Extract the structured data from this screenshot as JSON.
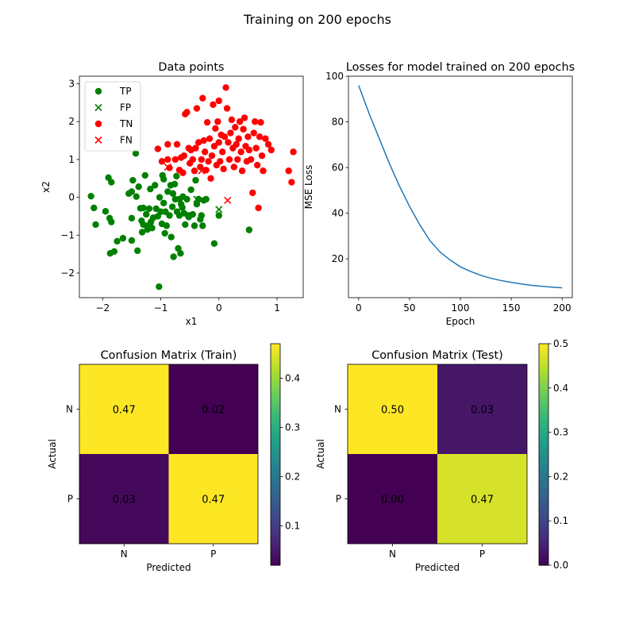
{
  "figure": {
    "suptitle": "Training on 200 epochs"
  },
  "chart_data": [
    {
      "type": "scatter",
      "title": "Data points",
      "xlabel": "x1",
      "ylabel": "x2",
      "xlim": [
        -2.4,
        1.45
      ],
      "ylim": [
        -2.65,
        3.2
      ],
      "xticks": [
        -2,
        -1,
        0,
        1
      ],
      "yticks": [
        -2,
        -1,
        0,
        1,
        2,
        3
      ],
      "legend_position": "upper-left",
      "series": [
        {
          "name": "TP",
          "marker": "circle",
          "color": "#008000",
          "points": [
            [
              -2.2,
              0.03
            ],
            [
              -2.15,
              -0.28
            ],
            [
              -2.12,
              -0.72
            ],
            [
              -1.95,
              -0.37
            ],
            [
              -1.9,
              0.52
            ],
            [
              -1.88,
              -0.55
            ],
            [
              -1.87,
              -1.48
            ],
            [
              -1.85,
              0.4
            ],
            [
              -1.85,
              -0.65
            ],
            [
              -1.8,
              -1.43
            ],
            [
              -1.75,
              -1.16
            ],
            [
              -1.65,
              -1.08
            ],
            [
              -1.55,
              0.1
            ],
            [
              -1.5,
              0.15
            ],
            [
              -1.5,
              -0.55
            ],
            [
              -1.5,
              -1.14
            ],
            [
              -1.48,
              0.45
            ],
            [
              -1.43,
              1.16
            ],
            [
              -1.42,
              0.02
            ],
            [
              -1.4,
              -1.41
            ],
            [
              -1.38,
              0.28
            ],
            [
              -1.35,
              -0.29
            ],
            [
              -1.33,
              -0.62
            ],
            [
              -1.32,
              -0.92
            ],
            [
              -1.3,
              -0.28
            ],
            [
              -1.3,
              -0.72
            ],
            [
              -1.27,
              0.58
            ],
            [
              -1.25,
              -0.45
            ],
            [
              -1.23,
              -0.85
            ],
            [
              -1.22,
              -0.75
            ],
            [
              -1.2,
              -0.3
            ],
            [
              -1.18,
              0.22
            ],
            [
              -1.17,
              -0.65
            ],
            [
              -1.15,
              -0.81
            ],
            [
              -1.13,
              -0.54
            ],
            [
              -1.1,
              0.32
            ],
            [
              -1.08,
              -0.3
            ],
            [
              -1.05,
              -0.5
            ],
            [
              -1.03,
              -2.36
            ],
            [
              -1.02,
              0.0
            ],
            [
              -1.0,
              -0.38
            ],
            [
              -0.98,
              -0.7
            ],
            [
              -0.97,
              0.58
            ],
            [
              -0.95,
              0.48
            ],
            [
              -0.95,
              -0.15
            ],
            [
              -0.93,
              -0.95
            ],
            [
              -0.92,
              -0.38
            ],
            [
              -0.9,
              -0.75
            ],
            [
              -0.88,
              0.15
            ],
            [
              -0.85,
              -0.48
            ],
            [
              -0.83,
              0.32
            ],
            [
              -0.82,
              -1.05
            ],
            [
              -0.8,
              -0.25
            ],
            [
              -0.79,
              0.1
            ],
            [
              -0.78,
              -1.57
            ],
            [
              -0.76,
              0.35
            ],
            [
              -0.75,
              -0.05
            ],
            [
              -0.73,
              0.56
            ],
            [
              -0.72,
              -0.38
            ],
            [
              -0.7,
              -1.35
            ],
            [
              -0.68,
              -0.05
            ],
            [
              -0.68,
              -0.48
            ],
            [
              -0.66,
              -1.48
            ],
            [
              -0.65,
              -0.18
            ],
            [
              -0.63,
              -0.27
            ],
            [
              -0.62,
              0.02
            ],
            [
              -0.6,
              -0.42
            ],
            [
              -0.58,
              -0.72
            ],
            [
              -0.55,
              -0.05
            ],
            [
              -0.53,
              -0.48
            ],
            [
              -0.52,
              -0.52
            ],
            [
              -0.5,
              -0.48
            ],
            [
              -0.48,
              0.2
            ],
            [
              -0.45,
              -0.45
            ],
            [
              -0.42,
              -0.75
            ],
            [
              -0.4,
              0.45
            ],
            [
              -0.38,
              -0.18
            ],
            [
              -0.35,
              -0.05
            ],
            [
              -0.32,
              -0.58
            ],
            [
              -0.3,
              -0.48
            ],
            [
              -0.28,
              -0.75
            ],
            [
              -0.26,
              -0.08
            ],
            [
              -0.22,
              -0.05
            ],
            [
              -0.08,
              -1.22
            ],
            [
              0.0,
              -0.48
            ],
            [
              0.52,
              -0.86
            ]
          ]
        },
        {
          "name": "FP",
          "marker": "x",
          "color": "#008000",
          "points": [
            [
              -0.38,
              -0.05
            ],
            [
              0.0,
              -0.32
            ]
          ]
        },
        {
          "name": "TN",
          "marker": "circle",
          "color": "#ff0000",
          "points": [
            [
              -1.05,
              1.28
            ],
            [
              -0.98,
              0.95
            ],
            [
              -0.88,
              1.4
            ],
            [
              -0.88,
              1.0
            ],
            [
              -0.85,
              0.78
            ],
            [
              -0.75,
              1.0
            ],
            [
              -0.72,
              1.4
            ],
            [
              -0.68,
              0.72
            ],
            [
              -0.65,
              1.05
            ],
            [
              -0.62,
              0.65
            ],
            [
              -0.6,
              1.1
            ],
            [
              -0.58,
              2.2
            ],
            [
              -0.55,
              2.25
            ],
            [
              -0.52,
              1.3
            ],
            [
              -0.5,
              0.9
            ],
            [
              -0.48,
              1.25
            ],
            [
              -0.45,
              1.0
            ],
            [
              -0.42,
              0.7
            ],
            [
              -0.4,
              1.3
            ],
            [
              -0.38,
              2.35
            ],
            [
              -0.35,
              1.45
            ],
            [
              -0.32,
              0.8
            ],
            [
              -0.3,
              1.0
            ],
            [
              -0.28,
              2.62
            ],
            [
              -0.26,
              1.5
            ],
            [
              -0.24,
              1.2
            ],
            [
              -0.22,
              0.72
            ],
            [
              -0.2,
              1.98
            ],
            [
              -0.18,
              0.95
            ],
            [
              -0.16,
              1.55
            ],
            [
              -0.14,
              0.5
            ],
            [
              -0.12,
              1.1
            ],
            [
              -0.1,
              2.45
            ],
            [
              -0.08,
              1.35
            ],
            [
              -0.06,
              1.82
            ],
            [
              -0.04,
              0.85
            ],
            [
              -0.02,
              2.0
            ],
            [
              0.0,
              1.45
            ],
            [
              0.0,
              2.55
            ],
            [
              0.02,
              0.95
            ],
            [
              0.04,
              1.65
            ],
            [
              0.06,
              1.2
            ],
            [
              0.08,
              0.75
            ],
            [
              0.1,
              1.6
            ],
            [
              0.12,
              2.9
            ],
            [
              0.14,
              2.35
            ],
            [
              0.16,
              1.45
            ],
            [
              0.18,
              1.0
            ],
            [
              0.2,
              1.7
            ],
            [
              0.22,
              2.05
            ],
            [
              0.24,
              1.3
            ],
            [
              0.26,
              0.8
            ],
            [
              0.28,
              1.85
            ],
            [
              0.3,
              1.4
            ],
            [
              0.32,
              1.0
            ],
            [
              0.34,
              1.55
            ],
            [
              0.36,
              2.0
            ],
            [
              0.38,
              1.2
            ],
            [
              0.4,
              0.7
            ],
            [
              0.42,
              1.8
            ],
            [
              0.44,
              2.1
            ],
            [
              0.46,
              1.35
            ],
            [
              0.48,
              0.95
            ],
            [
              0.5,
              1.6
            ],
            [
              0.52,
              1.25
            ],
            [
              0.55,
              1.0
            ],
            [
              0.58,
              0.12
            ],
            [
              0.6,
              1.7
            ],
            [
              0.62,
              2.0
            ],
            [
              0.64,
              1.3
            ],
            [
              0.66,
              0.85
            ],
            [
              0.68,
              -0.28
            ],
            [
              0.7,
              1.6
            ],
            [
              0.72,
              1.98
            ],
            [
              0.74,
              1.1
            ],
            [
              0.76,
              0.7
            ],
            [
              0.8,
              1.55
            ],
            [
              0.85,
              1.4
            ],
            [
              0.9,
              1.25
            ],
            [
              1.2,
              0.7
            ],
            [
              1.25,
              0.4
            ],
            [
              1.28,
              1.2
            ]
          ]
        },
        {
          "name": "FN",
          "marker": "x",
          "color": "#ff0000",
          "points": [
            [
              -0.88,
              0.8
            ],
            [
              -0.3,
              0.7
            ],
            [
              0.15,
              -0.08
            ]
          ]
        }
      ]
    },
    {
      "type": "line",
      "title": "Losses for model trained on 200 epochs",
      "xlabel": "Epoch",
      "ylabel": "MSE Loss",
      "xlim": [
        -10,
        210
      ],
      "ylim": [
        3,
        100
      ],
      "xticks": [
        0,
        50,
        100,
        150,
        200
      ],
      "yticks": [
        20,
        40,
        60,
        80,
        100
      ],
      "series": [
        {
          "color": "#1f77b4",
          "x": [
            0,
            10,
            20,
            30,
            40,
            50,
            60,
            70,
            80,
            90,
            100,
            110,
            120,
            130,
            140,
            150,
            160,
            170,
            180,
            190,
            200
          ],
          "y": [
            96,
            84,
            73,
            62,
            52,
            43,
            35,
            28,
            23,
            19.5,
            16.5,
            14.5,
            12.8,
            11.5,
            10.5,
            9.7,
            9.0,
            8.4,
            8.0,
            7.6,
            7.3
          ]
        }
      ]
    },
    {
      "type": "heatmap",
      "title": "Confusion Matrix (Train)",
      "xlabel": "Predicted",
      "ylabel": "Actual",
      "xticklabels": [
        "N",
        "P"
      ],
      "yticklabels": [
        "N",
        "P"
      ],
      "values": [
        [
          0.47,
          0.02
        ],
        [
          0.03,
          0.47
        ]
      ],
      "vmin": 0.02,
      "vmax": 0.47,
      "colorbar_ticks": [
        0.1,
        0.2,
        0.3,
        0.4
      ]
    },
    {
      "type": "heatmap",
      "title": "Confusion Matrix (Test)",
      "xlabel": "Predicted",
      "ylabel": "Actual",
      "xticklabels": [
        "N",
        "P"
      ],
      "yticklabels": [
        "N",
        "P"
      ],
      "values": [
        [
          0.5,
          0.03
        ],
        [
          0.0,
          0.47
        ]
      ],
      "vmin": 0.0,
      "vmax": 0.5,
      "colorbar_ticks": [
        0.0,
        0.1,
        0.2,
        0.3,
        0.4,
        0.5
      ]
    }
  ]
}
